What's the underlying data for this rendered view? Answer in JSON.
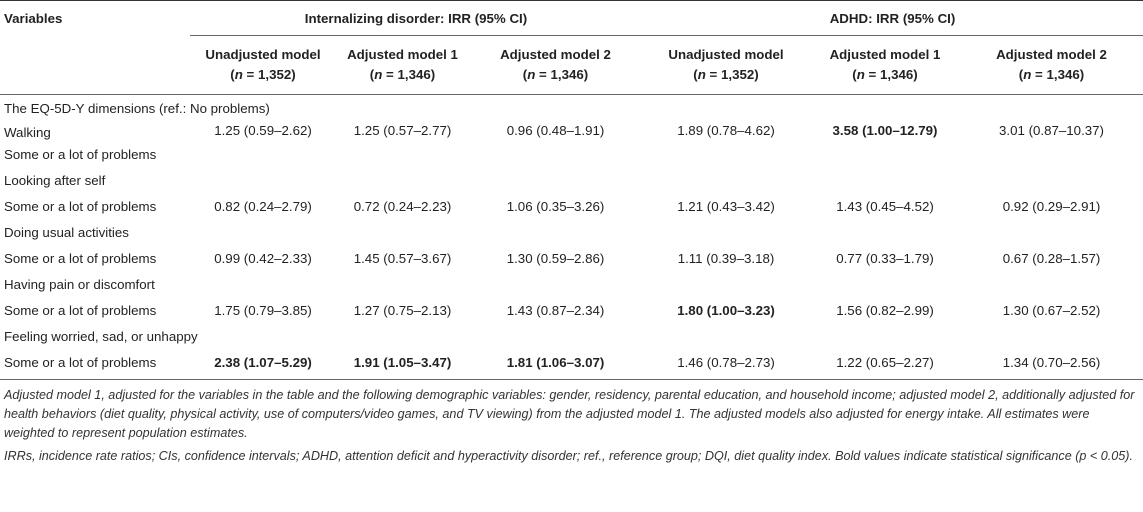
{
  "header": {
    "variables": "Variables",
    "group_internalizing": "Internalizing disorder: IRR (95% CI)",
    "group_adhd": "ADHD: IRR (95% CI)",
    "columns": [
      {
        "name": "Unadjusted model",
        "n_label": "n",
        "n_value": " = 1,352"
      },
      {
        "name": "Adjusted model 1",
        "n_label": "n",
        "n_value": " = 1,346"
      },
      {
        "name": "Adjusted model 2",
        "n_label": "n",
        "n_value": " = 1,346"
      },
      {
        "name": "Unadjusted model",
        "n_label": "n",
        "n_value": " = 1,352"
      },
      {
        "name": "Adjusted model 1",
        "n_label": "n",
        "n_value": " = 1,346"
      },
      {
        "name": "Adjusted model 2",
        "n_label": "n",
        "n_value": " = 1,346"
      }
    ]
  },
  "section_title": "The EQ-5D-Y dimensions (ref.: No problems)",
  "rows": [
    {
      "label1": "Walking",
      "label2": "Some or a lot of problems",
      "v": [
        "1.25 (0.59–2.62)",
        "1.25 (0.57–2.77)",
        "0.96 (0.48–1.91)",
        "1.89 (0.78–4.62)",
        "3.58 (1.00–12.79)",
        "3.01 (0.87–10.37)"
      ]
    },
    {
      "title": "Looking after self",
      "label": "Some or a lot of problems",
      "v": [
        "0.82 (0.24–2.79)",
        "0.72 (0.24–2.23)",
        "1.06 (0.35–3.26)",
        "1.21 (0.43–3.42)",
        "1.43 (0.45–4.52)",
        "0.92 (0.29–2.91)"
      ]
    },
    {
      "title": "Doing usual activities",
      "label": "Some or a lot of problems",
      "v": [
        "0.99 (0.42–2.33)",
        "1.45 (0.57–3.67)",
        "1.30 (0.59–2.86)",
        "1.11 (0.39–3.18)",
        "0.77 (0.33–1.79)",
        "0.67 (0.28–1.57)"
      ]
    },
    {
      "title": "Having pain or discomfort",
      "label": "Some or a lot of problems",
      "v": [
        "1.75 (0.79–3.85)",
        "1.27 (0.75–2.13)",
        "1.43 (0.87–2.34)",
        "1.80 (1.00–3.23)",
        "1.56 (0.82–2.99)",
        "1.30 (0.67–2.52)"
      ]
    },
    {
      "title": "Feeling worried, sad, or unhappy",
      "label": "Some or a lot of problems",
      "v": [
        "2.38 (1.07–5.29)",
        "1.91 (1.05–3.47)",
        "1.81 (1.06–3.07)",
        "1.46 (0.78–2.73)",
        "1.22 (0.65–2.27)",
        "1.34 (0.70–2.56)"
      ]
    }
  ],
  "notes": {
    "p1": "Adjusted model 1, adjusted for the variables in the table and the following demographic variables: gender, residency, parental education, and household income; adjusted model 2, additionally adjusted for health behaviors (diet quality, physical activity, use of computers/video games, and TV viewing) from the adjusted model 1. The adjusted models also adjusted for energy intake. All estimates were weighted to represent population estimates.",
    "p2": "IRRs, incidence rate ratios; CIs, confidence intervals; ADHD, attention deficit and hyperactivity disorder; ref., reference group; DQI, diet quality index. Bold values indicate statistical significance (p  < 0.05)."
  }
}
